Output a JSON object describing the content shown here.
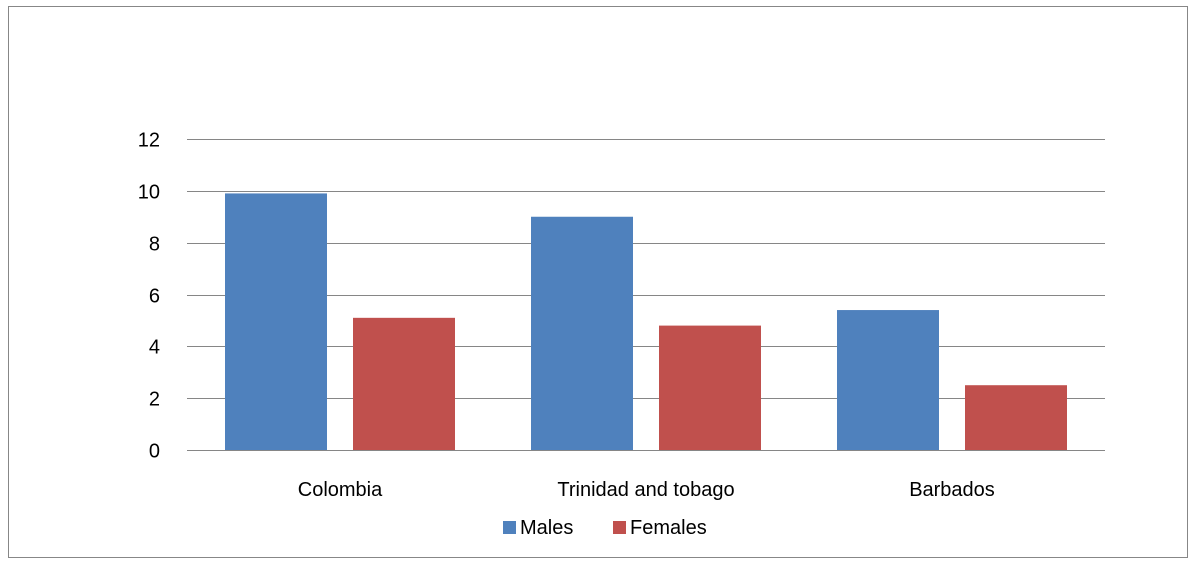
{
  "chart_data": {
    "type": "bar",
    "categories": [
      "Colombia",
      "Trinidad and tobago",
      "Barbados"
    ],
    "series": [
      {
        "name": "Males",
        "values": [
          9.9,
          9.0,
          5.4
        ],
        "color": "#4F81BD"
      },
      {
        "name": "Females",
        "values": [
          5.1,
          4.8,
          2.5
        ],
        "color": "#C0504D"
      }
    ],
    "title": "",
    "xlabel": "",
    "ylabel": "",
    "ylim": [
      0,
      12
    ],
    "yticks": [
      0,
      2,
      4,
      6,
      8,
      10,
      12
    ],
    "grid": true,
    "legend_position": "bottom"
  },
  "colors": {
    "gridline": "#868686",
    "frame": "#878787"
  }
}
